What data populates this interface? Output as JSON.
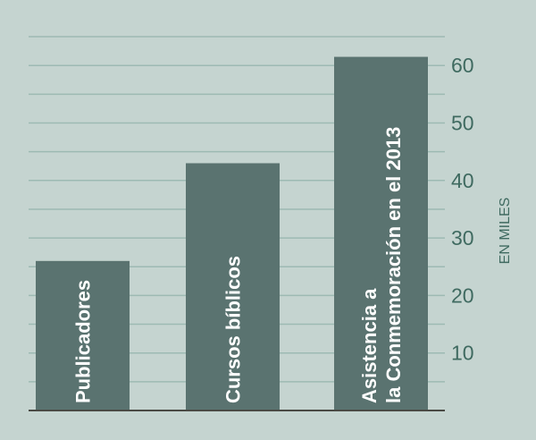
{
  "chart_data": {
    "type": "bar",
    "categories": [
      "Publicadores",
      "Cursos bíblicos",
      "Asistencia a\nla Conmemoración en el 2013"
    ],
    "values": [
      26,
      43,
      61.5
    ],
    "title": "",
    "xlabel": "",
    "ylabel": "EN MILES",
    "ylim": [
      0,
      65
    ],
    "yticks": [
      10,
      20,
      30,
      40,
      50,
      60
    ],
    "grid": true,
    "yaxis_position": "right",
    "labels_inside_bars": "vertical",
    "colors": {
      "background": "#c5d4d0",
      "bar": "#5a7370",
      "grid": "#9dbab3",
      "text": "#3f6a60",
      "baseline": "#4a4a44"
    }
  }
}
